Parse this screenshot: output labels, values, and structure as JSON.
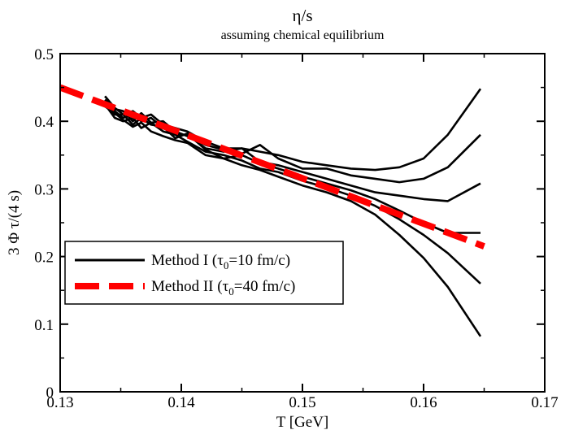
{
  "chart_data": {
    "type": "line",
    "title": "η/s",
    "subtitle": "assuming chemical equilibrium",
    "xlabel": "T [GeV]",
    "ylabel": "3 Φ τ/(4 s)",
    "xlim": [
      0.13,
      0.17
    ],
    "ylim": [
      0,
      0.5
    ],
    "xticks": [
      0.13,
      0.14,
      0.15,
      0.16,
      0.17
    ],
    "xtick_labels": [
      "0.13",
      "0.14",
      "0.15",
      "0.16",
      "0.17"
    ],
    "yticks": [
      0,
      0.1,
      0.2,
      0.3,
      0.4,
      0.5
    ],
    "ytick_labels": [
      "0",
      "0.1",
      "0.2",
      "0.3",
      "0.4",
      "0.5"
    ],
    "grid": false,
    "legend": {
      "placement": "lower-left",
      "entries": [
        {
          "base": "Method I (τ",
          "sub": "0",
          "tail": "=10 fm/c)",
          "style": "solid-black"
        },
        {
          "base": "Method II (τ",
          "sub": "0",
          "tail": "=40 fm/c)",
          "style": "dashed-red"
        }
      ]
    },
    "colors": {
      "method1": "#000000",
      "method2": "#ff0000"
    },
    "series": [
      {
        "group": "Method I",
        "style": "solid",
        "color": "#000000",
        "x": [
          0.1337,
          0.1345,
          0.1352,
          0.136,
          0.1367,
          0.1375,
          0.1385,
          0.1395,
          0.1405,
          0.142,
          0.1435,
          0.145,
          0.1465,
          0.148,
          0.15,
          0.152,
          0.154,
          0.156,
          0.158,
          0.16,
          0.162,
          0.1647
        ],
        "y": [
          0.437,
          0.42,
          0.41,
          0.415,
          0.405,
          0.41,
          0.395,
          0.39,
          0.385,
          0.37,
          0.36,
          0.36,
          0.355,
          0.35,
          0.34,
          0.335,
          0.33,
          0.328,
          0.332,
          0.345,
          0.38,
          0.448
        ]
      },
      {
        "group": "Method I",
        "style": "solid",
        "color": "#000000",
        "x": [
          0.1337,
          0.1345,
          0.1352,
          0.136,
          0.1367,
          0.1375,
          0.1385,
          0.1395,
          0.1405,
          0.142,
          0.1435,
          0.145,
          0.1465,
          0.148,
          0.15,
          0.152,
          0.154,
          0.156,
          0.158,
          0.16,
          0.162,
          0.1647
        ],
        "y": [
          0.432,
          0.418,
          0.415,
          0.4,
          0.412,
          0.398,
          0.4,
          0.385,
          0.378,
          0.365,
          0.358,
          0.352,
          0.365,
          0.345,
          0.33,
          0.33,
          0.32,
          0.315,
          0.31,
          0.315,
          0.332,
          0.38
        ]
      },
      {
        "group": "Method I",
        "style": "solid",
        "color": "#000000",
        "x": [
          0.1337,
          0.1345,
          0.1352,
          0.136,
          0.1367,
          0.1375,
          0.1385,
          0.1395,
          0.1405,
          0.142,
          0.1435,
          0.145,
          0.1465,
          0.148,
          0.15,
          0.152,
          0.154,
          0.156,
          0.158,
          0.16,
          0.162,
          0.1647
        ],
        "y": [
          0.43,
          0.415,
          0.405,
          0.41,
          0.4,
          0.405,
          0.39,
          0.38,
          0.38,
          0.36,
          0.355,
          0.36,
          0.34,
          0.335,
          0.325,
          0.315,
          0.305,
          0.295,
          0.29,
          0.285,
          0.282,
          0.308
        ]
      },
      {
        "group": "Method I",
        "style": "solid",
        "color": "#000000",
        "x": [
          0.1337,
          0.1345,
          0.1352,
          0.136,
          0.1367,
          0.1375,
          0.1385,
          0.1395,
          0.1405,
          0.142,
          0.1435,
          0.145,
          0.1465,
          0.148,
          0.15,
          0.152,
          0.154,
          0.156,
          0.158,
          0.16,
          0.162,
          0.1647
        ],
        "y": [
          0.428,
          0.41,
          0.41,
          0.395,
          0.405,
          0.395,
          0.392,
          0.375,
          0.382,
          0.358,
          0.345,
          0.35,
          0.338,
          0.33,
          0.318,
          0.308,
          0.298,
          0.285,
          0.268,
          0.25,
          0.235,
          0.235
        ]
      },
      {
        "group": "Method I",
        "style": "solid",
        "color": "#000000",
        "x": [
          0.1337,
          0.1345,
          0.1352,
          0.136,
          0.1367,
          0.1375,
          0.1385,
          0.1395,
          0.1405,
          0.142,
          0.1435,
          0.145,
          0.1465,
          0.148,
          0.15,
          0.152,
          0.154,
          0.156,
          0.158,
          0.16,
          0.162,
          0.1647
        ],
        "y": [
          0.425,
          0.405,
          0.4,
          0.405,
          0.39,
          0.398,
          0.385,
          0.38,
          0.37,
          0.355,
          0.35,
          0.342,
          0.33,
          0.325,
          0.312,
          0.302,
          0.29,
          0.275,
          0.255,
          0.232,
          0.205,
          0.16
        ]
      },
      {
        "group": "Method I",
        "style": "solid",
        "color": "#000000",
        "x": [
          0.1337,
          0.1345,
          0.1352,
          0.136,
          0.1367,
          0.1375,
          0.1385,
          0.1395,
          0.1405,
          0.142,
          0.1435,
          0.145,
          0.1465,
          0.148,
          0.15,
          0.152,
          0.154,
          0.156,
          0.158,
          0.16,
          0.162,
          0.1647
        ],
        "y": [
          0.422,
          0.412,
          0.402,
          0.392,
          0.398,
          0.385,
          0.378,
          0.372,
          0.368,
          0.35,
          0.345,
          0.335,
          0.328,
          0.318,
          0.305,
          0.295,
          0.282,
          0.262,
          0.232,
          0.198,
          0.155,
          0.082
        ]
      },
      {
        "group": "Method II",
        "style": "dashed",
        "color": "#ff0000",
        "x": [
          0.13,
          0.165
        ],
        "y": [
          0.45,
          0.215
        ]
      }
    ]
  }
}
